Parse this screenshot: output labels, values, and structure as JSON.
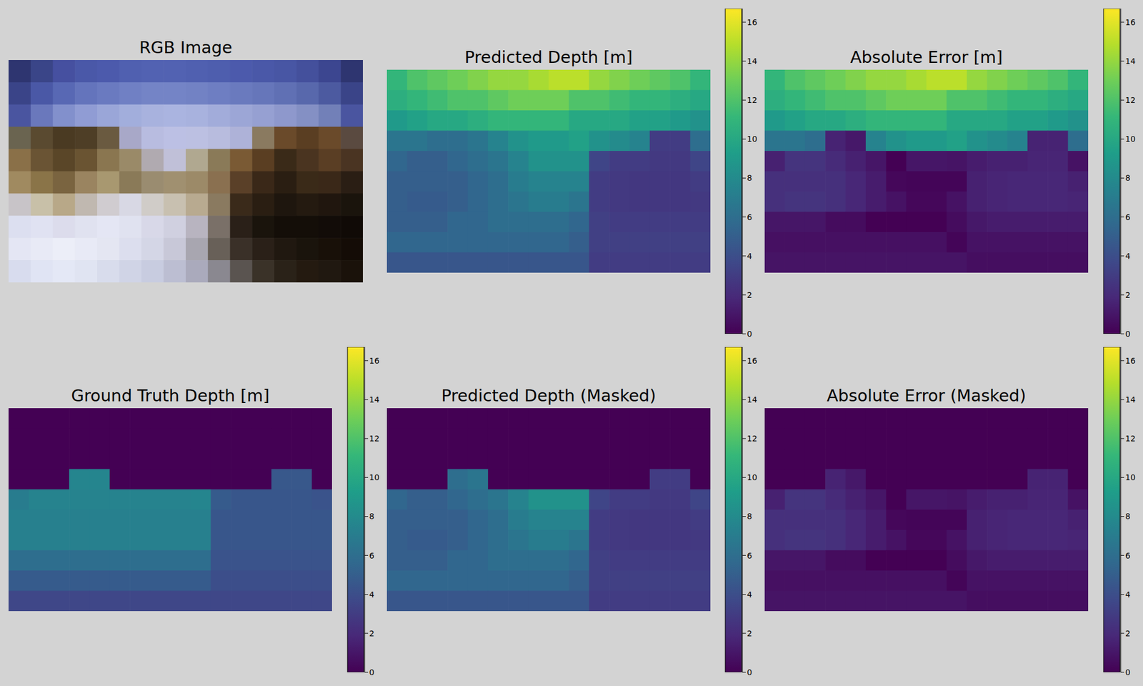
{
  "chart_data": [
    {
      "type": "image",
      "title": "RGB Image",
      "pixels": [
        [
          "#2e3570",
          "#3a4588",
          "#4650a0",
          "#4a58a8",
          "#4c5aac",
          "#5060b0",
          "#5262b2",
          "#5262b2",
          "#5060b0",
          "#4e5eae",
          "#4c5aac",
          "#4a58a8",
          "#4856a4",
          "#44509c",
          "#3c4690",
          "#2e3570"
        ],
        [
          "#3a4488",
          "#4a58a6",
          "#5868b4",
          "#6474bc",
          "#6a7ac0",
          "#7080c4",
          "#7484c6",
          "#7484c6",
          "#7282c4",
          "#6e7ec2",
          "#6a7abe",
          "#6676ba",
          "#6070b4",
          "#5868ac",
          "#4c5aa0",
          "#3a4488"
        ],
        [
          "#4a55a0",
          "#6a78bc",
          "#8290cc",
          "#909cd4",
          "#9aa6d8",
          "#a2aedc",
          "#a8b2de",
          "#aab4e0",
          "#a8b2de",
          "#a2acda",
          "#9ca6d6",
          "#96a0d2",
          "#8e98cc",
          "#8490c4",
          "#7280b8",
          "#4a55a0"
        ],
        [
          "#6a6450",
          "#5a4a30",
          "#4a3a22",
          "#4e3e26",
          "#6a5a40",
          "#a8a8c8",
          "#b8bce0",
          "#bcc0e4",
          "#bcc0e2",
          "#b8bcde",
          "#aeb2d8",
          "#8a7a60",
          "#6a4a2a",
          "#5a3e22",
          "#6a4a2a",
          "#5a4a40"
        ],
        [
          "#8a7048",
          "#6a5434",
          "#5a4628",
          "#6a5432",
          "#8a7650",
          "#9a8a68",
          "#b0aab0",
          "#c0c0d8",
          "#b0a890",
          "#8a7a58",
          "#7a5a34",
          "#5a3e22",
          "#3a2a18",
          "#4a3420",
          "#5a3e24",
          "#4a3422"
        ],
        [
          "#a08a60",
          "#8a7448",
          "#7a6440",
          "#9a8460",
          "#a89870",
          "#8a7a58",
          "#9a8c70",
          "#a09070",
          "#9c8a68",
          "#8a7050",
          "#5a4028",
          "#3a2818",
          "#2a1e12",
          "#3a2a18",
          "#3a2818",
          "#2a1e14"
        ],
        [
          "#c8c4c8",
          "#c8c0a8",
          "#b8a888",
          "#c0b8b0",
          "#d0ccd0",
          "#d8d8e4",
          "#d0ccc8",
          "#c8c0b0",
          "#b8aa90",
          "#8a7a60",
          "#3a2a1a",
          "#2a1e12",
          "#1e160e",
          "#241a10",
          "#20160e",
          "#1a140c"
        ],
        [
          "#dcdff0",
          "#e0e2f2",
          "#dcdcec",
          "#e0e2f0",
          "#e4e6f4",
          "#e0e2f0",
          "#d8d8e8",
          "#d0d0e0",
          "#b8b4c0",
          "#7a7068",
          "#2a2018",
          "#1a140c",
          "#140e08",
          "#140e08",
          "#120c08",
          "#100a06"
        ],
        [
          "#e4e6f4",
          "#e8eaf6",
          "#eceef8",
          "#e8eaf6",
          "#e4e6f2",
          "#dcdeee",
          "#d4d6e6",
          "#c8c8d8",
          "#a8a6b0",
          "#686058",
          "#3a3028",
          "#2a2018",
          "#201810",
          "#1a140c",
          "#181008",
          "#140c06"
        ],
        [
          "#d8dcee",
          "#e0e4f4",
          "#e4e8f6",
          "#e0e4f2",
          "#d8dcec",
          "#d0d4e6",
          "#c8cce0",
          "#bcbed2",
          "#aaaabc",
          "#8a8890",
          "#5a5450",
          "#3a3228",
          "#2a2218",
          "#241a10",
          "#201810",
          "#1a120a"
        ]
      ]
    },
    {
      "type": "heatmap",
      "title": "Predicted Depth [m]",
      "color_range": [
        0,
        16.7
      ],
      "color_ticks": [
        0,
        2,
        4,
        6,
        8,
        10,
        12,
        14,
        16
      ],
      "cells": [
        [
          11,
          12,
          12.5,
          13,
          13.5,
          14,
          14,
          14.5,
          15,
          15,
          14,
          13.5,
          13,
          12.5,
          12,
          11
        ],
        [
          10.5,
          11,
          11.5,
          12,
          12,
          12.5,
          13,
          13,
          13,
          12,
          12,
          11.5,
          11,
          11,
          10.5,
          10
        ],
        [
          9,
          9.5,
          10,
          10,
          10.5,
          11,
          11,
          11,
          11,
          10,
          10,
          10,
          9.5,
          9.5,
          9,
          8.5
        ],
        [
          6.5,
          6.5,
          6,
          6,
          6.5,
          7.5,
          8.5,
          9,
          9,
          9.5,
          8.5,
          8,
          7.5,
          3,
          3,
          6
        ],
        [
          5.5,
          5,
          5,
          5.5,
          6,
          6.5,
          7.5,
          8.5,
          8.5,
          8.5,
          3.5,
          3,
          3,
          2.8,
          2.8,
          3.5
        ],
        [
          5,
          5,
          5,
          5,
          5.5,
          6,
          7,
          7.5,
          7.5,
          7.5,
          3,
          2.8,
          2.7,
          2.7,
          2.7,
          3
        ],
        [
          5,
          4.8,
          4.8,
          5,
          5.5,
          6,
          6.5,
          7,
          7,
          6.5,
          3,
          2.8,
          2.7,
          2.7,
          2.7,
          2.8
        ],
        [
          5,
          5,
          5,
          5.5,
          5.5,
          6,
          6,
          6,
          6,
          5.5,
          3.2,
          3,
          3,
          3,
          3,
          3
        ],
        [
          5.5,
          5.5,
          5.5,
          5.5,
          5.5,
          5.5,
          5.5,
          5.5,
          5.5,
          5,
          3.2,
          3.2,
          3.2,
          3.2,
          3.2,
          3.2
        ],
        [
          4.5,
          4.5,
          4.5,
          4.5,
          4.5,
          4.5,
          4.5,
          4.5,
          4.5,
          4.5,
          3,
          3,
          3,
          3,
          3,
          3
        ]
      ]
    },
    {
      "type": "heatmap",
      "title": "Absolute Error [m]",
      "color_range": [
        0,
        16.7
      ],
      "color_ticks": [
        0,
        2,
        4,
        6,
        8,
        10,
        12,
        14,
        16
      ],
      "cells": [
        [
          11,
          12,
          12.5,
          13,
          13.5,
          14,
          14,
          14.5,
          15,
          15,
          14,
          13.5,
          13,
          12.5,
          12,
          11
        ],
        [
          10.5,
          11,
          11.5,
          12,
          12,
          12.5,
          13,
          13,
          13,
          12,
          12,
          11.5,
          11,
          11,
          10.5,
          10
        ],
        [
          9,
          9.5,
          10,
          10,
          10.5,
          11,
          11,
          11,
          11,
          10,
          10,
          10,
          9.5,
          9.5,
          9,
          8.5
        ],
        [
          6.5,
          6.5,
          6,
          1.6,
          1.1,
          7.5,
          8.5,
          9,
          9,
          9.5,
          8.5,
          8,
          7.5,
          1.6,
          1.6,
          6
        ],
        [
          1.5,
          2.5,
          2.5,
          2,
          1.5,
          1,
          0,
          1,
          1,
          0.9,
          1.3,
          1.5,
          1.5,
          1.7,
          1.7,
          0.8
        ],
        [
          2.3,
          2.3,
          2.3,
          2.3,
          1.8,
          1.3,
          0.3,
          0.2,
          0.2,
          0.2,
          1.5,
          1.7,
          1.8,
          1.8,
          1.8,
          1.5
        ],
        [
          2.3,
          2.5,
          2.5,
          2.3,
          1.8,
          1.3,
          0.8,
          0.3,
          0.3,
          0.8,
          1.5,
          1.7,
          1.8,
          1.8,
          1.8,
          1.7
        ],
        [
          1,
          1,
          1,
          0.5,
          0.5,
          0,
          0,
          0,
          0,
          0.5,
          1.1,
          1.3,
          1.3,
          1.3,
          1.3,
          1.3
        ],
        [
          0.7,
          0.7,
          0.7,
          0.7,
          0.7,
          0.7,
          0.7,
          0.7,
          0.7,
          0.2,
          0.8,
          0.8,
          0.8,
          0.8,
          0.8,
          0.8
        ],
        [
          0.9,
          0.9,
          0.9,
          0.9,
          0.9,
          0.9,
          0.9,
          0.9,
          0.9,
          0.9,
          0.6,
          0.6,
          0.6,
          0.6,
          0.6,
          0.6
        ]
      ]
    },
    {
      "type": "heatmap",
      "title": "Ground Truth Depth [m]",
      "color_range": [
        0,
        16.7
      ],
      "color_ticks": [
        0,
        2,
        4,
        6,
        8,
        10,
        12,
        14,
        16
      ],
      "cells": [
        [
          0,
          0,
          0,
          0,
          0,
          0,
          0,
          0,
          0,
          0,
          0,
          0,
          0,
          0,
          0,
          0
        ],
        [
          0,
          0,
          0,
          0,
          0,
          0,
          0,
          0,
          0,
          0,
          0,
          0,
          0,
          0,
          0,
          0
        ],
        [
          0,
          0,
          0,
          0,
          0,
          0,
          0,
          0,
          0,
          0,
          0,
          0,
          0,
          0,
          0,
          0
        ],
        [
          0,
          0,
          0,
          7.6,
          7.6,
          0,
          0,
          0,
          0,
          0,
          0,
          0,
          0,
          4.6,
          4.6,
          0
        ],
        [
          7,
          7.5,
          7.5,
          7.5,
          7.5,
          7.5,
          7.5,
          7.5,
          7.5,
          7.6,
          4.8,
          4.5,
          4.5,
          4.5,
          4.5,
          4.3
        ],
        [
          7.3,
          7.3,
          7.3,
          7.3,
          7.3,
          7.3,
          7.3,
          7.3,
          7.3,
          7.3,
          4.5,
          4.5,
          4.5,
          4.5,
          4.5,
          4.5
        ],
        [
          7.3,
          7.3,
          7.3,
          7.3,
          7.3,
          7.3,
          7.3,
          7.3,
          7.3,
          7.3,
          4.5,
          4.5,
          4.5,
          4.5,
          4.5,
          4.5
        ],
        [
          6,
          6,
          6,
          6,
          6,
          6,
          6,
          6,
          6,
          6,
          4.3,
          4.3,
          4.3,
          4.3,
          4.3,
          4.3
        ],
        [
          4.8,
          4.8,
          4.8,
          4.8,
          4.8,
          4.8,
          4.8,
          4.8,
          4.8,
          4.8,
          4,
          4,
          4,
          4,
          4,
          4
        ],
        [
          3.6,
          3.6,
          3.6,
          3.6,
          3.6,
          3.6,
          3.6,
          3.6,
          3.6,
          3.6,
          3.6,
          3.6,
          3.6,
          3.6,
          3.6,
          3.6
        ]
      ]
    },
    {
      "type": "heatmap",
      "title": "Predicted Depth (Masked)",
      "color_range": [
        0,
        16.7
      ],
      "color_ticks": [
        0,
        2,
        4,
        6,
        8,
        10,
        12,
        14,
        16
      ],
      "cells": [
        [
          0,
          0,
          0,
          0,
          0,
          0,
          0,
          0,
          0,
          0,
          0,
          0,
          0,
          0,
          0,
          0
        ],
        [
          0,
          0,
          0,
          0,
          0,
          0,
          0,
          0,
          0,
          0,
          0,
          0,
          0,
          0,
          0,
          0
        ],
        [
          0,
          0,
          0,
          0,
          0,
          0,
          0,
          0,
          0,
          0,
          0,
          0,
          0,
          0,
          0,
          0
        ],
        [
          0,
          0,
          0,
          6,
          6.5,
          0,
          0,
          0,
          0,
          0,
          0,
          0,
          0,
          3,
          3,
          0
        ],
        [
          5.5,
          5,
          5,
          5.5,
          6,
          6.5,
          7.5,
          8.5,
          8.5,
          8.5,
          3.5,
          3,
          3,
          2.8,
          2.8,
          3.5
        ],
        [
          5,
          5,
          5,
          5,
          5.5,
          6,
          7,
          7.5,
          7.5,
          7.5,
          3,
          2.8,
          2.7,
          2.7,
          2.7,
          3
        ],
        [
          5,
          4.8,
          4.8,
          5,
          5.5,
          6,
          6.5,
          7,
          7,
          6.5,
          3,
          2.8,
          2.7,
          2.7,
          2.7,
          2.8
        ],
        [
          5,
          5,
          5,
          5.5,
          5.5,
          6,
          6,
          6,
          6,
          5.5,
          3.2,
          3,
          3,
          3,
          3,
          3
        ],
        [
          5.5,
          5.5,
          5.5,
          5.5,
          5.5,
          5.5,
          5.5,
          5.5,
          5.5,
          5,
          3.2,
          3.2,
          3.2,
          3.2,
          3.2,
          3.2
        ],
        [
          4.5,
          4.5,
          4.5,
          4.5,
          4.5,
          4.5,
          4.5,
          4.5,
          4.5,
          4.5,
          3,
          3,
          3,
          3,
          3,
          3
        ]
      ]
    },
    {
      "type": "heatmap",
      "title": "Absolute Error (Masked)",
      "color_range": [
        0,
        16.7
      ],
      "color_ticks": [
        0,
        2,
        4,
        6,
        8,
        10,
        12,
        14,
        16
      ],
      "cells": [
        [
          0,
          0,
          0,
          0,
          0,
          0,
          0,
          0,
          0,
          0,
          0,
          0,
          0,
          0,
          0,
          0
        ],
        [
          0,
          0,
          0,
          0,
          0,
          0,
          0,
          0,
          0,
          0,
          0,
          0,
          0,
          0,
          0,
          0
        ],
        [
          0,
          0,
          0,
          0,
          0,
          0,
          0,
          0,
          0,
          0,
          0,
          0,
          0,
          0,
          0,
          0
        ],
        [
          0,
          0,
          0,
          1.6,
          1.1,
          0,
          0,
          0,
          0,
          0,
          0,
          0,
          0,
          1.6,
          1.6,
          0
        ],
        [
          1.5,
          2.5,
          2.5,
          2,
          1.5,
          1,
          0,
          1,
          1,
          0.9,
          1.3,
          1.5,
          1.5,
          1.7,
          1.7,
          0.8
        ],
        [
          2.3,
          2.3,
          2.3,
          2.3,
          1.8,
          1.3,
          0.3,
          0.2,
          0.2,
          0.2,
          1.5,
          1.7,
          1.8,
          1.8,
          1.8,
          1.5
        ],
        [
          2.3,
          2.5,
          2.5,
          2.3,
          1.8,
          1.3,
          0.8,
          0.3,
          0.3,
          0.8,
          1.5,
          1.7,
          1.8,
          1.8,
          1.8,
          1.7
        ],
        [
          1,
          1,
          1,
          0.5,
          0.5,
          0,
          0,
          0,
          0,
          0.5,
          1.1,
          1.3,
          1.3,
          1.3,
          1.3,
          1.3
        ],
        [
          0.7,
          0.7,
          0.7,
          0.7,
          0.7,
          0.7,
          0.7,
          0.7,
          0.7,
          0.2,
          0.8,
          0.8,
          0.8,
          0.8,
          0.8,
          0.8
        ],
        [
          0.9,
          0.9,
          0.9,
          0.9,
          0.9,
          0.9,
          0.9,
          0.9,
          0.9,
          0.9,
          0.6,
          0.6,
          0.6,
          0.6,
          0.6,
          0.6
        ]
      ]
    }
  ]
}
